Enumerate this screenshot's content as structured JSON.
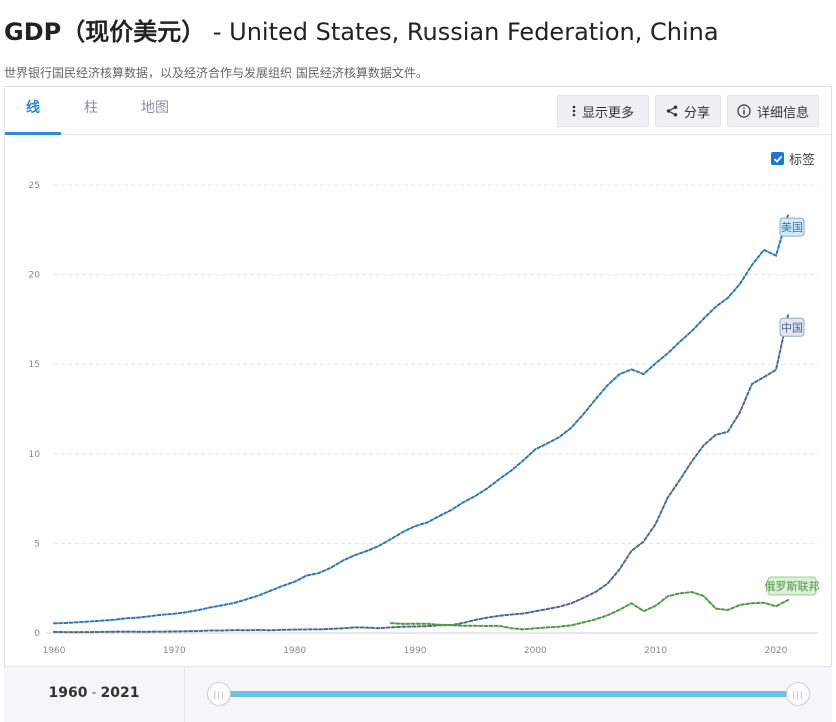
{
  "header": {
    "title_cn": "GDP（现价美元）",
    "title_rest": " - United States, Russian Federation, China",
    "subtitle": "世界银行国民经济核算数据，以及经济合作与发展组织 国民经济核算数据文件。"
  },
  "tabs": [
    {
      "label": "线",
      "active": true
    },
    {
      "label": "柱",
      "active": false
    },
    {
      "label": "地图",
      "active": false
    }
  ],
  "toolbar": {
    "more_label": "显示更多",
    "share_label": "分享",
    "details_label": "详细信息"
  },
  "legend": {
    "label_toggle": "标签",
    "checked": true
  },
  "range": {
    "start": "1960",
    "sep": "-",
    "end": "2021"
  },
  "chart_data": {
    "type": "line",
    "title": "GDP（现价美元）",
    "xlabel": "",
    "ylabel": "",
    "xlim": [
      1960,
      2021
    ],
    "ylim": [
      0,
      25
    ],
    "xticks": [
      1960,
      1970,
      1980,
      1990,
      2000,
      2010,
      2020
    ],
    "yticks": [
      0,
      5,
      10,
      15,
      20,
      25
    ],
    "grid": true,
    "series": [
      {
        "name": "美国",
        "color": "#2e79b5",
        "x": [
          1960,
          1961,
          1962,
          1963,
          1964,
          1965,
          1966,
          1967,
          1968,
          1969,
          1970,
          1971,
          1972,
          1973,
          1974,
          1975,
          1976,
          1977,
          1978,
          1979,
          1980,
          1981,
          1982,
          1983,
          1984,
          1985,
          1986,
          1987,
          1988,
          1989,
          1990,
          1991,
          1992,
          1993,
          1994,
          1995,
          1996,
          1997,
          1998,
          1999,
          2000,
          2001,
          2002,
          2003,
          2004,
          2005,
          2006,
          2007,
          2008,
          2009,
          2010,
          2011,
          2012,
          2013,
          2014,
          2015,
          2016,
          2017,
          2018,
          2019,
          2020,
          2021
        ],
        "values": [
          0.54,
          0.56,
          0.6,
          0.64,
          0.69,
          0.74,
          0.82,
          0.86,
          0.94,
          1.02,
          1.07,
          1.16,
          1.28,
          1.43,
          1.55,
          1.68,
          1.88,
          2.09,
          2.36,
          2.63,
          2.86,
          3.21,
          3.34,
          3.64,
          4.04,
          4.34,
          4.58,
          4.86,
          5.24,
          5.64,
          5.96,
          6.16,
          6.52,
          6.86,
          7.29,
          7.64,
          8.07,
          8.58,
          9.06,
          9.63,
          10.25,
          10.58,
          10.94,
          11.46,
          12.21,
          13.04,
          13.82,
          14.45,
          14.71,
          14.45,
          15.05,
          15.6,
          16.25,
          16.84,
          17.55,
          18.21,
          18.7,
          19.48,
          20.53,
          21.38,
          21.06,
          23.32
        ]
      },
      {
        "name": "中国",
        "color": "#4f6a92",
        "x": [
          1960,
          1961,
          1962,
          1963,
          1964,
          1965,
          1966,
          1967,
          1968,
          1969,
          1970,
          1971,
          1972,
          1973,
          1974,
          1975,
          1976,
          1977,
          1978,
          1979,
          1980,
          1981,
          1982,
          1983,
          1984,
          1985,
          1986,
          1987,
          1988,
          1989,
          1990,
          1991,
          1992,
          1993,
          1994,
          1995,
          1996,
          1997,
          1998,
          1999,
          2000,
          2001,
          2002,
          2003,
          2004,
          2005,
          2006,
          2007,
          2008,
          2009,
          2010,
          2011,
          2012,
          2013,
          2014,
          2015,
          2016,
          2017,
          2018,
          2019,
          2020,
          2021
        ],
        "values": [
          0.06,
          0.05,
          0.05,
          0.05,
          0.06,
          0.07,
          0.08,
          0.07,
          0.07,
          0.08,
          0.09,
          0.1,
          0.11,
          0.14,
          0.14,
          0.16,
          0.15,
          0.17,
          0.15,
          0.18,
          0.19,
          0.2,
          0.2,
          0.23,
          0.26,
          0.31,
          0.3,
          0.27,
          0.31,
          0.35,
          0.36,
          0.38,
          0.43,
          0.44,
          0.56,
          0.73,
          0.86,
          0.96,
          1.03,
          1.09,
          1.21,
          1.34,
          1.47,
          1.66,
          1.96,
          2.29,
          2.75,
          3.55,
          4.59,
          5.1,
          6.09,
          7.55,
          8.53,
          9.57,
          10.48,
          11.06,
          11.23,
          12.31,
          13.89,
          14.28,
          14.69,
          17.73
        ]
      },
      {
        "name": "俄罗斯联邦",
        "color": "#4f9a45",
        "x": [
          1988,
          1989,
          1990,
          1991,
          1992,
          1993,
          1994,
          1995,
          1996,
          1997,
          1998,
          1999,
          2000,
          2001,
          2002,
          2003,
          2004,
          2005,
          2006,
          2007,
          2008,
          2009,
          2010,
          2011,
          2012,
          2013,
          2014,
          2015,
          2016,
          2017,
          2018,
          2019,
          2020,
          2021
        ],
        "values": [
          0.55,
          0.51,
          0.52,
          0.52,
          0.46,
          0.44,
          0.4,
          0.4,
          0.39,
          0.4,
          0.27,
          0.2,
          0.26,
          0.31,
          0.35,
          0.43,
          0.59,
          0.76,
          0.99,
          1.3,
          1.66,
          1.22,
          1.52,
          2.05,
          2.21,
          2.29,
          2.06,
          1.36,
          1.28,
          1.57,
          1.66,
          1.69,
          1.49,
          1.84
        ]
      }
    ]
  }
}
